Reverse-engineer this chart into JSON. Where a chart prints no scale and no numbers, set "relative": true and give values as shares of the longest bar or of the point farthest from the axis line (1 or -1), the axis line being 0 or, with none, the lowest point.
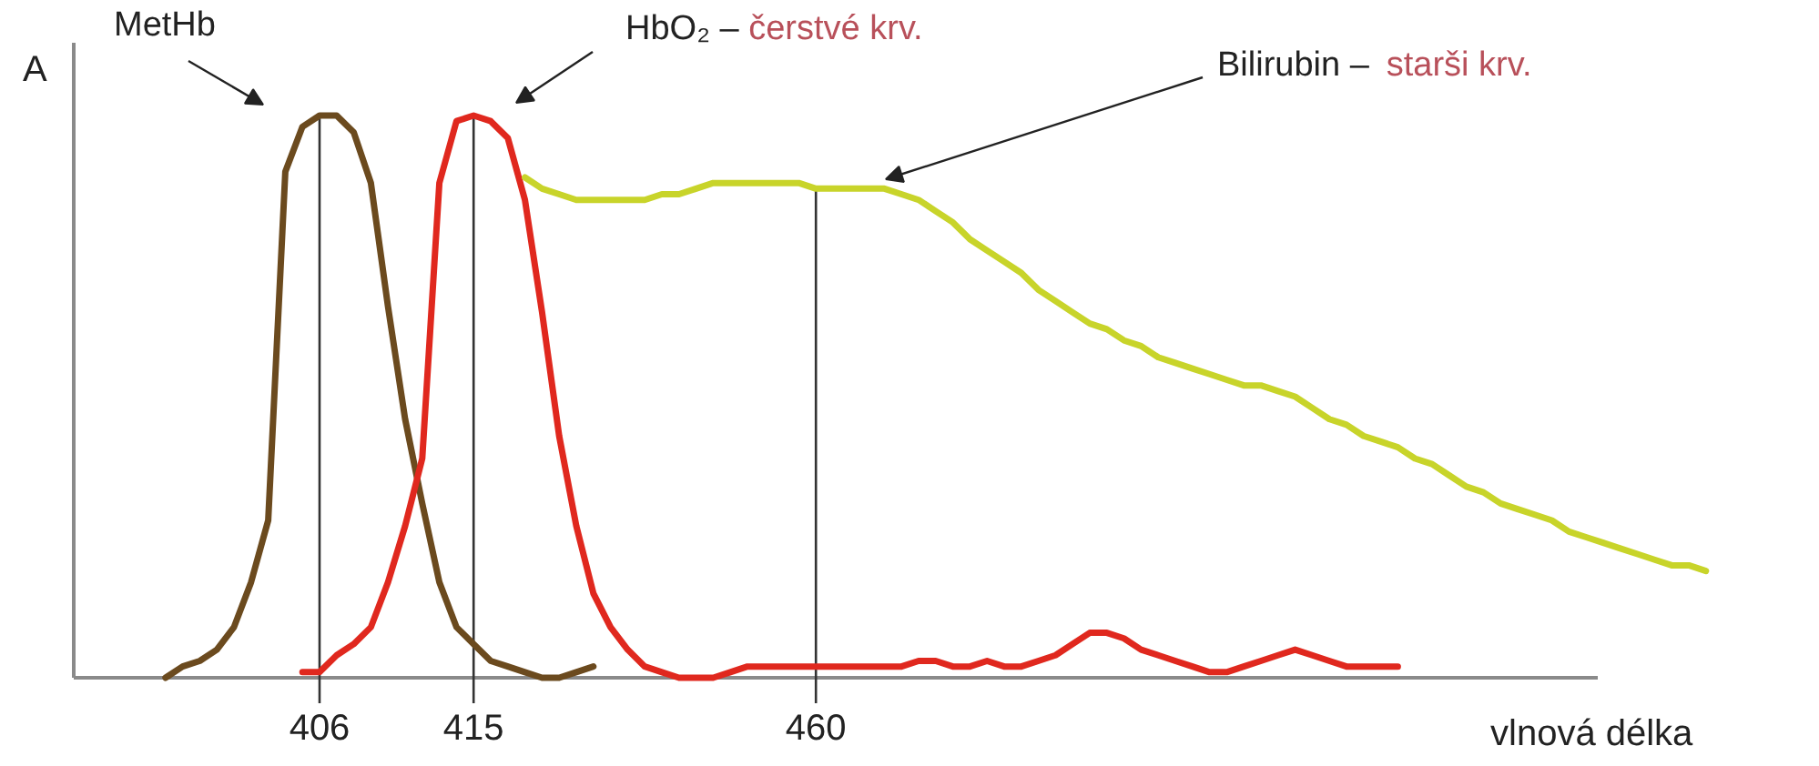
{
  "chart_data": {
    "type": "line",
    "relative": true,
    "xlabel": "vlnová délka",
    "ylabel": "A",
    "grid": false,
    "legend": false,
    "marker": "none",
    "line_style": "solid",
    "categories": [
      null,
      null,
      null,
      null,
      null,
      null,
      null,
      null,
      null,
      null,
      null,
      null,
      null,
      null,
      "406",
      null,
      null,
      null,
      null,
      null,
      null,
      null,
      null,
      "415",
      null,
      null,
      null,
      null,
      null,
      null,
      null,
      null,
      null,
      null,
      null,
      null,
      null,
      null,
      null,
      null,
      null,
      null,
      null,
      "460",
      null,
      null,
      null,
      null,
      null,
      null,
      null,
      null,
      null,
      null,
      null,
      null,
      null,
      null,
      null,
      null,
      null,
      null,
      null,
      null,
      null,
      null,
      null,
      null,
      null,
      null,
      null,
      null,
      null,
      null,
      null,
      null,
      null,
      null,
      null,
      null,
      null,
      null,
      null,
      null,
      null,
      null,
      null,
      null,
      null,
      null,
      null,
      null,
      null,
      null,
      null,
      null
    ],
    "series": [
      {
        "name": "MetHb",
        "color": "#6b4a1e",
        "values": [
          null,
          null,
          null,
          null,
          null,
          0.0,
          0.02,
          0.03,
          0.05,
          0.09,
          0.17,
          0.28,
          0.9,
          0.98,
          1.0,
          1.0,
          0.97,
          0.88,
          0.66,
          0.46,
          0.31,
          0.17,
          0.09,
          0.06,
          0.03,
          0.02,
          0.01,
          0.0,
          0.0,
          0.01,
          0.02,
          null,
          null,
          null,
          null,
          null,
          null,
          null,
          null,
          null,
          null,
          null,
          null,
          null,
          null,
          null,
          null,
          null,
          null,
          null,
          null,
          null,
          null,
          null,
          null,
          null,
          null,
          null,
          null,
          null,
          null,
          null,
          null,
          null,
          null,
          null,
          null,
          null,
          null,
          null,
          null,
          null,
          null,
          null,
          null,
          null,
          null,
          null,
          null,
          null,
          null,
          null,
          null,
          null,
          null,
          null,
          null,
          null,
          null,
          null,
          null,
          null,
          null,
          null,
          null,
          null
        ]
      },
      {
        "name": "HbO₂ – čerstvé krv.",
        "color": "#e0281e",
        "values": [
          null,
          null,
          null,
          null,
          null,
          null,
          null,
          null,
          null,
          null,
          null,
          null,
          null,
          0.01,
          0.01,
          0.04,
          0.06,
          0.09,
          0.17,
          0.27,
          0.39,
          0.88,
          0.99,
          1.0,
          0.99,
          0.96,
          0.85,
          0.65,
          0.43,
          0.27,
          0.15,
          0.09,
          0.05,
          0.02,
          0.01,
          0.0,
          0.0,
          0.0,
          0.01,
          0.02,
          0.02,
          0.02,
          0.02,
          0.02,
          0.02,
          0.02,
          0.02,
          0.02,
          0.02,
          0.03,
          0.03,
          0.02,
          0.02,
          0.03,
          0.02,
          0.02,
          0.03,
          0.04,
          0.06,
          0.08,
          0.08,
          0.07,
          0.05,
          0.04,
          0.03,
          0.02,
          0.01,
          0.01,
          0.02,
          0.03,
          0.04,
          0.05,
          0.04,
          0.03,
          0.02,
          0.02,
          0.02,
          0.02,
          null,
          null,
          null,
          null,
          null,
          null,
          null,
          null,
          null,
          null,
          null,
          null,
          null,
          null,
          null,
          null,
          null,
          null
        ]
      },
      {
        "name": "Bilirubin – starši krv.",
        "color": "#c8d42a",
        "values": [
          null,
          null,
          null,
          null,
          null,
          null,
          null,
          null,
          null,
          null,
          null,
          null,
          null,
          null,
          null,
          null,
          null,
          null,
          null,
          null,
          null,
          null,
          null,
          null,
          null,
          null,
          0.89,
          0.87,
          0.86,
          0.85,
          0.85,
          0.85,
          0.85,
          0.85,
          0.86,
          0.86,
          0.87,
          0.88,
          0.88,
          0.88,
          0.88,
          0.88,
          0.88,
          0.87,
          0.87,
          0.87,
          0.87,
          0.87,
          0.86,
          0.85,
          0.83,
          0.81,
          0.78,
          0.76,
          0.74,
          0.72,
          0.69,
          0.67,
          0.65,
          0.63,
          0.62,
          0.6,
          0.59,
          0.57,
          0.56,
          0.55,
          0.54,
          0.53,
          0.52,
          0.52,
          0.51,
          0.5,
          0.48,
          0.46,
          0.45,
          0.43,
          0.42,
          0.41,
          0.39,
          0.38,
          0.36,
          0.34,
          0.33,
          0.31,
          0.3,
          0.29,
          0.28,
          0.26,
          0.25,
          0.24,
          0.23,
          0.22,
          0.21,
          0.2,
          0.2,
          0.19
        ]
      }
    ],
    "ref_lines": [
      {
        "axis": "x",
        "value": "406",
        "color": "#333333"
      },
      {
        "axis": "x",
        "value": "415",
        "color": "#333333"
      },
      {
        "axis": "x",
        "value": "460",
        "color": "#333333"
      }
    ]
  }
}
